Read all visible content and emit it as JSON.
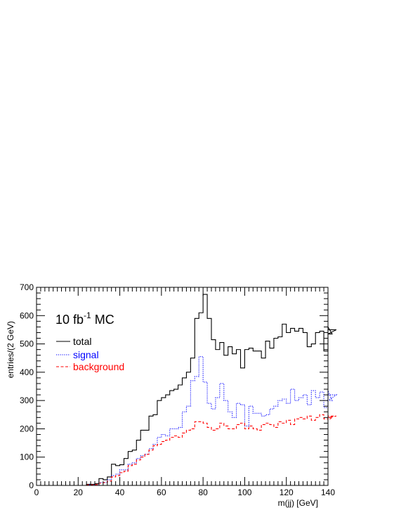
{
  "chart_data": {
    "type": "histogram",
    "xlabel": "m(jj) [GeV]",
    "ylabel": "entries/(2 GeV)",
    "xlim": [
      0,
      140
    ],
    "ylim": [
      0,
      700
    ],
    "bin_width": 2,
    "bin_start": 0,
    "x_ticks": [
      "0",
      "20",
      "40",
      "60",
      "80",
      "100",
      "120",
      "140"
    ],
    "y_ticks": [
      "0",
      "100",
      "200",
      "300",
      "400",
      "500",
      "600",
      "700"
    ],
    "annotation": {
      "text": "10 fb",
      "superscript": "-1",
      "suffix": " MC"
    },
    "legend_position": "upper-left",
    "series": [
      {
        "name": "total",
        "color": "#000000",
        "style": "solid",
        "values": [
          0,
          0,
          0,
          0,
          0,
          0,
          0,
          0,
          0,
          0,
          0,
          0,
          4,
          4,
          6,
          24,
          20,
          30,
          75,
          70,
          73,
          95,
          120,
          125,
          160,
          195,
          195,
          245,
          250,
          300,
          310,
          320,
          335,
          340,
          355,
          380,
          400,
          450,
          590,
          610,
          675,
          590,
          515,
          480,
          505,
          460,
          490,
          465,
          480,
          415,
          480,
          485,
          475,
          475,
          450,
          510,
          485,
          520,
          525,
          570,
          540,
          555,
          545,
          555,
          540,
          490,
          500,
          540,
          545,
          475,
          560,
          535,
          550
        ]
      },
      {
        "name": "signal",
        "color": "#0000ff",
        "style": "dotted",
        "values": [
          0,
          0,
          0,
          0,
          0,
          0,
          0,
          0,
          0,
          0,
          0,
          0,
          2,
          2,
          3,
          10,
          10,
          20,
          35,
          40,
          55,
          55,
          75,
          80,
          95,
          105,
          110,
          130,
          145,
          170,
          180,
          175,
          200,
          200,
          205,
          260,
          280,
          370,
          385,
          455,
          365,
          290,
          270,
          310,
          360,
          300,
          260,
          240,
          290,
          285,
          210,
          280,
          255,
          255,
          245,
          250,
          270,
          280,
          300,
          305,
          290,
          340,
          300,
          310,
          320,
          285,
          335,
          310,
          330,
          275,
          335,
          300,
          320
        ]
      },
      {
        "name": "background",
        "color": "#ff0000",
        "style": "dashed",
        "values": [
          0,
          0,
          0,
          0,
          0,
          0,
          0,
          0,
          0,
          0,
          0,
          0,
          2,
          2,
          3,
          8,
          10,
          15,
          30,
          35,
          45,
          50,
          70,
          75,
          90,
          100,
          110,
          125,
          140,
          145,
          155,
          160,
          170,
          175,
          170,
          185,
          195,
          200,
          225,
          225,
          220,
          205,
          195,
          200,
          220,
          210,
          200,
          200,
          215,
          220,
          200,
          210,
          200,
          195,
          215,
          220,
          215,
          205,
          225,
          220,
          230,
          215,
          235,
          240,
          235,
          245,
          230,
          240,
          250,
          235,
          230,
          240,
          245
        ]
      }
    ]
  }
}
